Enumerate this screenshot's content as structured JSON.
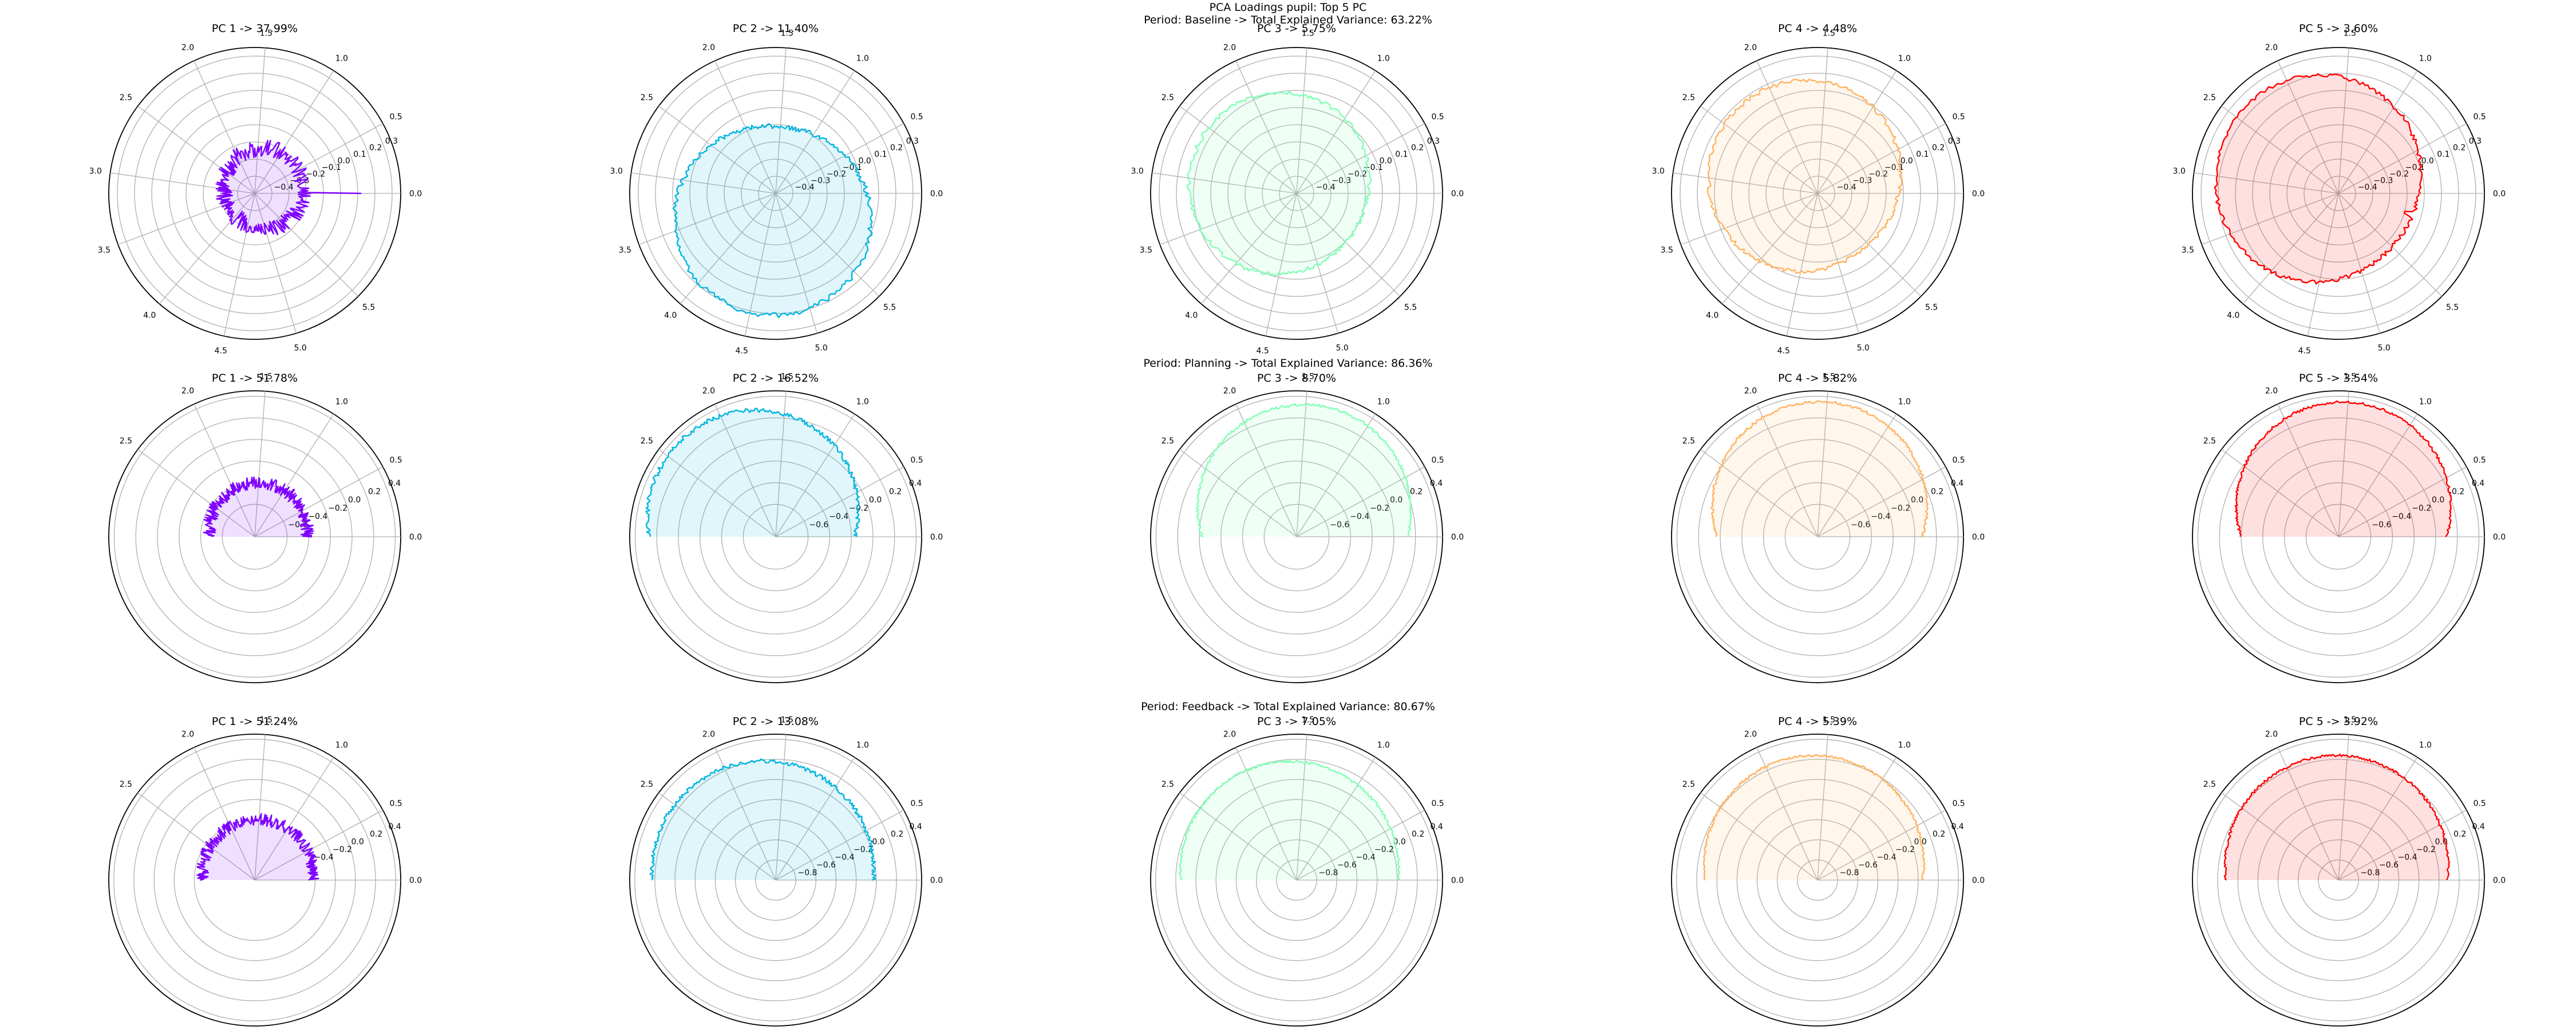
{
  "figure": {
    "suptitle": "PCA Loadings pupil: Top 5 PC"
  },
  "rows": [
    {
      "period_title": "Period: Baseline -> Total Explained Variance: 63.22%"
    },
    {
      "period_title": "Period: Planning -> Total Explained Variance: 86.36%"
    },
    {
      "period_title": "Period: Feedback -> Total Explained Variance: 80.67%"
    }
  ],
  "colors": {
    "pc1": "#7f00ff",
    "pc2": "#00b5e0",
    "pc3": "#80ffb4",
    "pc4": "#ffb360",
    "pc5": "#ff0000",
    "grid": "#b0b0b0",
    "spine": "#000000"
  },
  "chart_data": [
    {
      "type": "polar-line",
      "row": 0,
      "col": 0,
      "title": "PC 1 -> 37.99%",
      "color": "pc1",
      "theta_range": [
        0,
        6.2832
      ],
      "angle_ticks": [
        "0.0",
        "0.5",
        "1.0",
        "1.5",
        "2.0",
        "2.5",
        "3.0",
        "3.5",
        "4.0",
        "4.5",
        "5.0",
        "5.5"
      ],
      "rlim": [
        -0.5,
        0.35
      ],
      "r_ticks": [
        "-0.4",
        "-0.3",
        "-0.2",
        "-0.1",
        "0.0",
        "0.1",
        "0.2",
        "0.3"
      ],
      "shape": {
        "base": -0.27,
        "amp": 0.06,
        "noise": 0.05,
        "phase": 0.5,
        "spike_theta": 0.0,
        "spike_r": 0.12
      }
    },
    {
      "type": "polar-line",
      "row": 0,
      "col": 1,
      "title": "PC 2 -> 11.40%",
      "color": "pc2",
      "theta_range": [
        0,
        6.2832
      ],
      "angle_ticks": [
        "0.0",
        "0.5",
        "1.0",
        "1.5",
        "2.0",
        "2.5",
        "3.0",
        "3.5",
        "4.0",
        "4.5",
        "5.0",
        "5.5"
      ],
      "rlim": [
        -0.5,
        0.35
      ],
      "r_ticks": [
        "-0.4",
        "-0.3",
        "-0.2",
        "-0.1",
        "0.0",
        "0.1",
        "0.2",
        "0.3"
      ],
      "shape": {
        "base": 0.05,
        "amp": 0.16,
        "noise": 0.015,
        "phase": 4.6
      }
    },
    {
      "type": "polar-line",
      "row": 0,
      "col": 2,
      "title": "PC 3 -> 5.75%",
      "color": "pc3",
      "theta_range": [
        0,
        6.2832
      ],
      "angle_ticks": [
        "0.0",
        "0.5",
        "1.0",
        "1.5",
        "2.0",
        "2.5",
        "3.0",
        "3.5",
        "4.0",
        "4.5",
        "5.0",
        "5.5"
      ],
      "rlim": [
        -0.5,
        0.35
      ],
      "r_ticks": [
        "-0.4",
        "-0.3",
        "-0.2",
        "-0.1",
        "0.0",
        "0.1",
        "0.2",
        "0.3"
      ],
      "shape": {
        "base": 0.02,
        "amp": 0.12,
        "noise": 0.012,
        "phase": 2.6
      }
    },
    {
      "type": "polar-line",
      "row": 0,
      "col": 3,
      "title": "PC 4 -> 4.48%",
      "color": "pc4",
      "theta_range": [
        0,
        6.2832
      ],
      "angle_ticks": [
        "0.0",
        "0.5",
        "1.0",
        "1.5",
        "2.0",
        "2.5",
        "3.0",
        "3.5",
        "4.0",
        "4.5",
        "5.0",
        "5.5"
      ],
      "rlim": [
        -0.5,
        0.35
      ],
      "r_ticks": [
        "-0.4",
        "-0.3",
        "-0.2",
        "-0.1",
        "0.0",
        "0.1",
        "0.2",
        "0.3"
      ],
      "shape": {
        "base": 0.05,
        "amp": 0.13,
        "noise": 0.012,
        "phase": 2.2
      }
    },
    {
      "type": "polar-line",
      "row": 0,
      "col": 4,
      "title": "PC 5 -> 3.60%",
      "color": "pc5",
      "theta_range": [
        0,
        6.2832
      ],
      "angle_ticks": [
        "0.0",
        "0.5",
        "1.0",
        "1.5",
        "2.0",
        "2.5",
        "3.0",
        "3.5",
        "4.0",
        "4.5",
        "5.0",
        "5.5"
      ],
      "rlim": [
        -0.5,
        0.35
      ],
      "r_ticks": [
        "-0.4",
        "-0.3",
        "-0.2",
        "-0.1",
        "0.0",
        "0.1",
        "0.2",
        "0.3"
      ],
      "shape": {
        "base": 0.09,
        "amp": 0.15,
        "noise": 0.012,
        "phase": 2.5,
        "spike_theta": 6.0,
        "spike_r": -0.1
      }
    },
    {
      "type": "polar-line",
      "row": 1,
      "col": 0,
      "title": "PC 1 -> 51.78%",
      "color": "pc1",
      "theta_range": [
        0,
        3.1416
      ],
      "angle_ticks": [
        "0.0",
        "0.5",
        "1.0",
        "1.5",
        "2.0",
        "2.5"
      ],
      "rlim": [
        -0.9,
        0.45
      ],
      "r_ticks": [
        "-0.6",
        "-0.4",
        "-0.2",
        "0.0",
        "0.2",
        "0.4"
      ],
      "shape": {
        "base": -0.45,
        "amp": 0.06,
        "noise": 0.06,
        "phase": 1.0
      }
    },
    {
      "type": "polar-line",
      "row": 1,
      "col": 1,
      "title": "PC 2 -> 16.52%",
      "color": "pc2",
      "theta_range": [
        0,
        3.1416
      ],
      "angle_ticks": [
        "0.0",
        "0.5",
        "1.0",
        "1.5",
        "2.0",
        "2.5"
      ],
      "rlim": [
        -0.9,
        0.45
      ],
      "r_ticks": [
        "-0.6",
        "-0.4",
        "-0.2",
        "0.0",
        "0.2",
        "0.4"
      ],
      "shape": {
        "base": 0.05,
        "amp": 0.3,
        "noise": 0.02,
        "phase": 2.4
      }
    },
    {
      "type": "polar-line",
      "row": 1,
      "col": 2,
      "title": "PC 3 -> 8.70%",
      "color": "pc3",
      "theta_range": [
        0,
        3.1416
      ],
      "angle_ticks": [
        "0.0",
        "0.5",
        "1.0",
        "1.5",
        "2.0",
        "2.5"
      ],
      "rlim": [
        -0.9,
        0.45
      ],
      "r_ticks": [
        "-0.6",
        "-0.4",
        "-0.2",
        "0.0",
        "0.2",
        "0.4"
      ],
      "shape": {
        "base": 0.05,
        "amp": 0.28,
        "noise": 0.012,
        "phase": 1.3
      }
    },
    {
      "type": "polar-line",
      "row": 1,
      "col": 3,
      "title": "PC 4 -> 5.82%",
      "color": "pc4",
      "theta_range": [
        0,
        3.1416
      ],
      "angle_ticks": [
        "0.0",
        "0.5",
        "1.0",
        "1.5",
        "2.0",
        "2.5"
      ],
      "rlim": [
        -0.9,
        0.45
      ],
      "r_ticks": [
        "-0.6",
        "-0.4",
        "-0.2",
        "0.0",
        "0.2",
        "0.4"
      ],
      "shape": {
        "base": 0.05,
        "amp": 0.3,
        "noise": 0.012,
        "phase": 1.5
      }
    },
    {
      "type": "polar-line",
      "row": 1,
      "col": 4,
      "title": "PC 5 -> 3.54%",
      "color": "pc5",
      "theta_range": [
        0,
        3.1416
      ],
      "angle_ticks": [
        "0.0",
        "0.5",
        "1.0",
        "1.5",
        "2.0",
        "2.5"
      ],
      "rlim": [
        -0.9,
        0.45
      ],
      "r_ticks": [
        "-0.6",
        "-0.4",
        "-0.2",
        "0.0",
        "0.2",
        "0.4"
      ],
      "shape": {
        "base": 0.05,
        "amp": 0.3,
        "noise": 0.012,
        "phase": 1.4
      }
    },
    {
      "type": "polar-line",
      "row": 2,
      "col": 0,
      "title": "PC 1 -> 51.24%",
      "color": "pc1",
      "theta_range": [
        0,
        3.1416
      ],
      "angle_ticks": [
        "0.0",
        "0.5",
        "1.0",
        "1.5",
        "2.0",
        "2.5"
      ],
      "rlim": [
        -1.0,
        0.45
      ],
      "r_ticks": [
        "-0.4",
        "-0.2",
        "0.0",
        "0.2",
        "0.4"
      ],
      "shape": {
        "base": -0.45,
        "amp": 0.06,
        "noise": 0.06,
        "phase": 1.0
      }
    },
    {
      "type": "polar-line",
      "row": 2,
      "col": 1,
      "title": "PC 2 -> 13.08%",
      "color": "pc2",
      "theta_range": [
        0,
        3.1416
      ],
      "angle_ticks": [
        "0.0",
        "0.5",
        "1.0",
        "1.5",
        "2.0",
        "2.5"
      ],
      "rlim": [
        -1.0,
        0.45
      ],
      "r_ticks": [
        "-0.8",
        "-0.6",
        "-0.4",
        "-0.2",
        "0.0",
        "0.2",
        "0.4"
      ],
      "shape": {
        "base": 0.1,
        "amp": 0.15,
        "noise": 0.02,
        "phase": 2.6
      }
    },
    {
      "type": "polar-line",
      "row": 2,
      "col": 2,
      "title": "PC 3 -> 7.05%",
      "color": "pc3",
      "theta_range": [
        0,
        3.1416
      ],
      "angle_ticks": [
        "0.0",
        "0.5",
        "1.0",
        "1.5",
        "2.0",
        "2.5"
      ],
      "rlim": [
        -1.0,
        0.45
      ],
      "r_ticks": [
        "-0.8",
        "-0.6",
        "-0.4",
        "-0.2",
        "0.0",
        "0.2",
        "0.4"
      ],
      "shape": {
        "base": 0.08,
        "amp": 0.12,
        "noise": 0.012,
        "phase": 2.2
      }
    },
    {
      "type": "polar-line",
      "row": 2,
      "col": 3,
      "title": "PC 4 -> 5.39%",
      "color": "pc4",
      "theta_range": [
        0,
        3.1416
      ],
      "angle_ticks": [
        "0.0",
        "0.5",
        "1.0",
        "1.5",
        "2.0",
        "2.5"
      ],
      "rlim": [
        -1.0,
        0.45
      ],
      "r_ticks": [
        "-0.8",
        "-0.6",
        "-0.4",
        "-0.2",
        "0.0",
        "0.2",
        "0.4"
      ],
      "shape": {
        "base": 0.08,
        "amp": 0.16,
        "noise": 0.012,
        "phase": 1.8
      }
    },
    {
      "type": "polar-line",
      "row": 2,
      "col": 4,
      "title": "PC 5 -> 3.92%",
      "color": "pc5",
      "theta_range": [
        0,
        3.1416
      ],
      "angle_ticks": [
        "0.0",
        "0.5",
        "1.0",
        "1.5",
        "2.0",
        "2.5"
      ],
      "rlim": [
        -1.0,
        0.45
      ],
      "r_ticks": [
        "-0.8",
        "-0.6",
        "-0.4",
        "-0.2",
        "0.0",
        "0.2",
        "0.4"
      ],
      "shape": {
        "base": 0.1,
        "amp": 0.14,
        "noise": 0.012,
        "phase": 1.7
      }
    }
  ]
}
